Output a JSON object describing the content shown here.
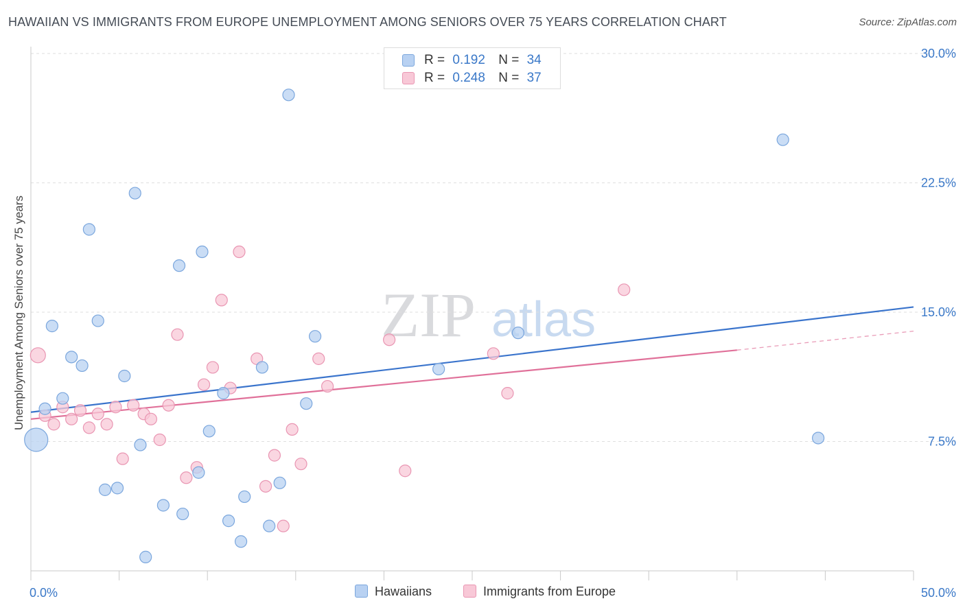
{
  "title": "HAWAIIAN VS IMMIGRANTS FROM EUROPE UNEMPLOYMENT AMONG SENIORS OVER 75 YEARS CORRELATION CHART",
  "source": "Source: ZipAtlas.com",
  "watermark": {
    "zip": "ZIP",
    "atlas": "atlas"
  },
  "legend_top": [
    {
      "r_label": "R =",
      "r_value": "0.192",
      "n_label": "N =",
      "n_value": "34"
    },
    {
      "r_label": "R =",
      "r_value": "0.248",
      "n_label": "N =",
      "n_value": "37"
    }
  ],
  "legend_bottom": [
    {
      "label": "Hawaiians"
    },
    {
      "label": "Immigrants from Europe"
    }
  ],
  "colors": {
    "hawaiians_fill": "#b8d1f2",
    "hawaiians_stroke": "#7aa6dd",
    "hawaiians_line": "#3a74cc",
    "europe_fill": "#f8c8d7",
    "europe_stroke": "#e995b2",
    "europe_line": "#e07099",
    "tick_text": "#3a78c8"
  },
  "chart_data": {
    "type": "scatter",
    "xlabel": "",
    "ylabel": "Unemployment Among Seniors over 75 years",
    "xlim": [
      0,
      50
    ],
    "ylim": [
      0,
      30
    ],
    "x_tick_labels": [
      {
        "value": 0,
        "label": "0.0%"
      },
      {
        "value": 50,
        "label": "50.0%"
      }
    ],
    "y_tick_labels": [
      {
        "value": 7.5,
        "label": "7.5%"
      },
      {
        "value": 15,
        "label": "15.0%"
      },
      {
        "value": 22.5,
        "label": "22.5%"
      },
      {
        "value": 30,
        "label": "30.0%"
      }
    ],
    "series": [
      {
        "name": "Hawaiians",
        "R": 0.192,
        "N": 34,
        "trend": {
          "x0": 0,
          "y0": 9.2,
          "x1": 50,
          "y1": 15.3
        },
        "points": [
          {
            "x": 0.3,
            "y": 7.6,
            "size": "large"
          },
          {
            "x": 0.8,
            "y": 9.4
          },
          {
            "x": 1.2,
            "y": 14.2
          },
          {
            "x": 1.8,
            "y": 10.0
          },
          {
            "x": 2.3,
            "y": 12.4
          },
          {
            "x": 2.9,
            "y": 11.9
          },
          {
            "x": 3.3,
            "y": 19.8
          },
          {
            "x": 3.8,
            "y": 14.5
          },
          {
            "x": 4.2,
            "y": 4.7
          },
          {
            "x": 4.9,
            "y": 4.8
          },
          {
            "x": 5.3,
            "y": 11.3
          },
          {
            "x": 5.9,
            "y": 21.9
          },
          {
            "x": 6.2,
            "y": 7.3
          },
          {
            "x": 6.5,
            "y": 0.8
          },
          {
            "x": 7.5,
            "y": 3.8
          },
          {
            "x": 8.4,
            "y": 17.7
          },
          {
            "x": 8.6,
            "y": 3.3
          },
          {
            "x": 9.5,
            "y": 5.7
          },
          {
            "x": 9.7,
            "y": 18.5
          },
          {
            "x": 10.1,
            "y": 8.1
          },
          {
            "x": 10.9,
            "y": 10.3
          },
          {
            "x": 11.2,
            "y": 2.9
          },
          {
            "x": 11.9,
            "y": 1.7
          },
          {
            "x": 12.1,
            "y": 4.3
          },
          {
            "x": 13.1,
            "y": 11.8
          },
          {
            "x": 13.5,
            "y": 2.6
          },
          {
            "x": 14.1,
            "y": 5.1
          },
          {
            "x": 14.6,
            "y": 27.6
          },
          {
            "x": 15.6,
            "y": 9.7
          },
          {
            "x": 16.1,
            "y": 13.6
          },
          {
            "x": 23.1,
            "y": 11.7
          },
          {
            "x": 27.6,
            "y": 13.8
          },
          {
            "x": 42.6,
            "y": 25.0
          },
          {
            "x": 44.6,
            "y": 7.7
          }
        ]
      },
      {
        "name": "Immigrants from Europe",
        "R": 0.248,
        "N": 37,
        "trend": {
          "x0": 0,
          "y0": 8.8,
          "x1": 40,
          "y1": 12.8
        },
        "trend_extension": {
          "x0": 40,
          "y0": 12.8,
          "x1": 50,
          "y1": 13.9
        },
        "points": [
          {
            "x": 0.4,
            "y": 12.5,
            "size": "medium"
          },
          {
            "x": 0.8,
            "y": 9.0
          },
          {
            "x": 1.3,
            "y": 8.5
          },
          {
            "x": 1.8,
            "y": 9.5
          },
          {
            "x": 2.3,
            "y": 8.8
          },
          {
            "x": 2.8,
            "y": 9.3
          },
          {
            "x": 3.3,
            "y": 8.3
          },
          {
            "x": 3.8,
            "y": 9.1
          },
          {
            "x": 4.3,
            "y": 8.5
          },
          {
            "x": 4.8,
            "y": 9.5
          },
          {
            "x": 5.2,
            "y": 6.5
          },
          {
            "x": 5.8,
            "y": 9.6
          },
          {
            "x": 6.4,
            "y": 9.1
          },
          {
            "x": 6.8,
            "y": 8.8
          },
          {
            "x": 7.3,
            "y": 7.6
          },
          {
            "x": 7.8,
            "y": 9.6
          },
          {
            "x": 8.3,
            "y": 13.7
          },
          {
            "x": 8.8,
            "y": 5.4
          },
          {
            "x": 9.4,
            "y": 6.0
          },
          {
            "x": 9.8,
            "y": 10.8
          },
          {
            "x": 10.3,
            "y": 11.8
          },
          {
            "x": 10.8,
            "y": 15.7
          },
          {
            "x": 11.3,
            "y": 10.6
          },
          {
            "x": 11.8,
            "y": 18.5
          },
          {
            "x": 12.8,
            "y": 12.3
          },
          {
            "x": 13.3,
            "y": 4.9
          },
          {
            "x": 13.8,
            "y": 6.7
          },
          {
            "x": 14.3,
            "y": 2.6
          },
          {
            "x": 14.8,
            "y": 8.2
          },
          {
            "x": 15.3,
            "y": 6.2
          },
          {
            "x": 16.3,
            "y": 12.3
          },
          {
            "x": 16.8,
            "y": 10.7
          },
          {
            "x": 20.3,
            "y": 13.4
          },
          {
            "x": 21.2,
            "y": 5.8
          },
          {
            "x": 26.2,
            "y": 12.6
          },
          {
            "x": 27.0,
            "y": 10.3
          },
          {
            "x": 33.6,
            "y": 16.3
          }
        ]
      }
    ]
  }
}
